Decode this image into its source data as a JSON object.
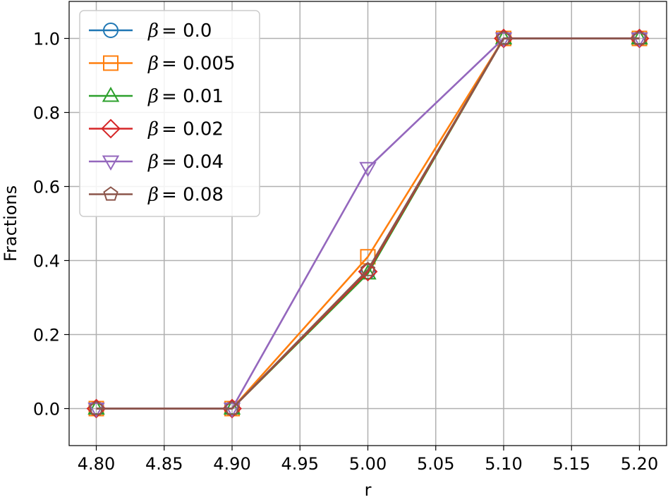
{
  "chart_data": {
    "type": "line",
    "xlabel": "r",
    "ylabel": "Fractions",
    "xlim": [
      4.78,
      5.22
    ],
    "ylim": [
      -0.1,
      1.1
    ],
    "xticks": [
      4.8,
      4.85,
      4.9,
      4.95,
      5.0,
      5.05,
      5.1,
      5.15,
      5.2
    ],
    "xtick_labels": [
      "4.80",
      "4.85",
      "4.90",
      "4.95",
      "5.00",
      "5.05",
      "5.10",
      "5.15",
      "5.20"
    ],
    "yticks": [
      0.0,
      0.2,
      0.4,
      0.6,
      0.8,
      1.0
    ],
    "ytick_labels": [
      "0.0",
      "0.2",
      "0.4",
      "0.6",
      "0.8",
      "1.0"
    ],
    "grid": true,
    "legend_position": "top-left",
    "x": [
      4.8,
      4.9,
      5.0,
      5.1,
      5.2
    ],
    "series": [
      {
        "name": "β = 0.0",
        "name_symbol": "β",
        "name_value": "= 0.0",
        "color": "#1f77b4",
        "marker": "circle",
        "values": [
          0.0,
          0.0,
          0.37,
          1.0,
          1.0
        ]
      },
      {
        "name": "β = 0.005",
        "name_symbol": "β",
        "name_value": "= 0.005",
        "color": "#ff7f0e",
        "marker": "square",
        "values": [
          0.0,
          0.0,
          0.41,
          1.0,
          1.0
        ]
      },
      {
        "name": "β = 0.01",
        "name_symbol": "β",
        "name_value": "= 0.01",
        "color": "#2ca02c",
        "marker": "triangle-up",
        "values": [
          0.0,
          0.0,
          0.365,
          1.0,
          1.0
        ]
      },
      {
        "name": "β = 0.02",
        "name_symbol": "β",
        "name_value": "= 0.02",
        "color": "#d62728",
        "marker": "diamond",
        "values": [
          0.0,
          0.0,
          0.37,
          1.0,
          1.0
        ]
      },
      {
        "name": "β = 0.04",
        "name_symbol": "β",
        "name_value": "= 0.04",
        "color": "#9467bd",
        "marker": "triangle-down",
        "values": [
          0.0,
          0.0,
          0.65,
          1.0,
          1.0
        ]
      },
      {
        "name": "β = 0.08",
        "name_symbol": "β",
        "name_value": "= 0.08",
        "color": "#8c564b",
        "marker": "pentagon",
        "values": [
          0.0,
          0.0,
          0.375,
          1.0,
          1.0
        ]
      }
    ]
  }
}
